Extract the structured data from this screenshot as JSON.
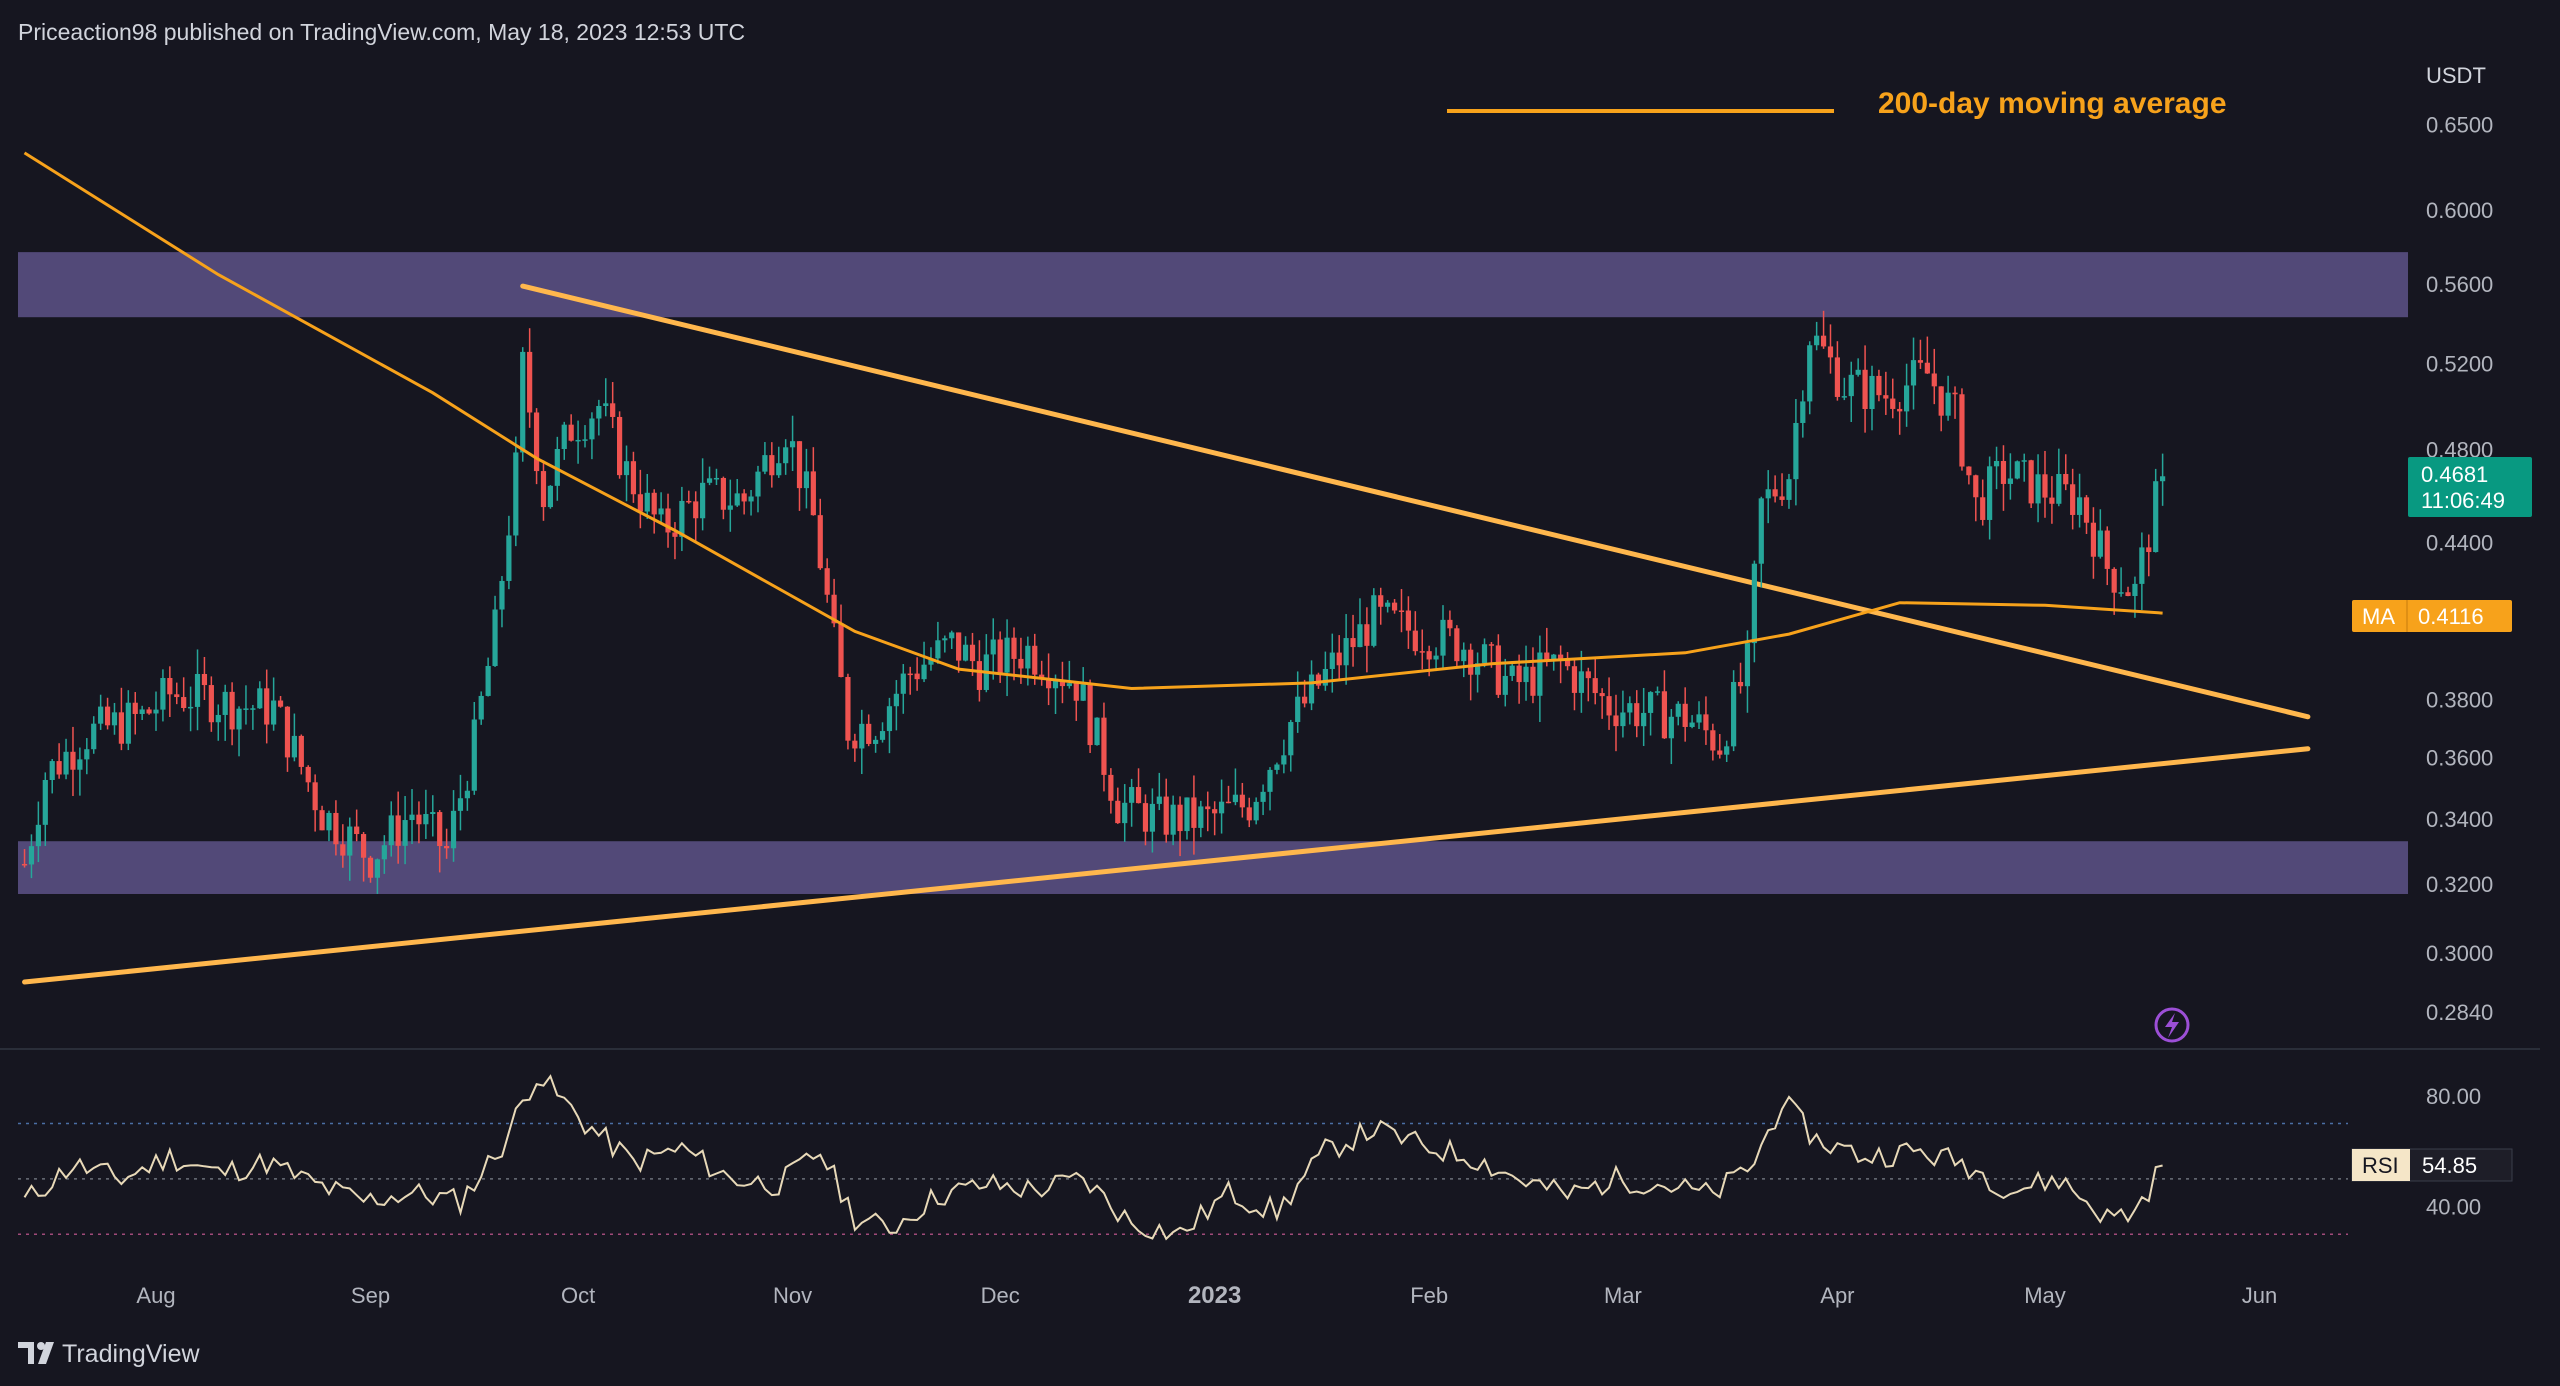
{
  "header": {
    "publisher": "Priceaction98 published on TradingView.com, May 18, 2023 12:53 UTC"
  },
  "footer": {
    "brand": "TradingView"
  },
  "colors": {
    "background": "#161620",
    "up": "#26a69a",
    "down": "#ef5350",
    "ma": "#f7a21b",
    "trendline": "#ffb74d",
    "zone": "#6a5d9a",
    "rsi": "#e8d9b8",
    "text": "#d1d4dc",
    "label_bg_green": "#089981"
  },
  "chart_data": [
    {
      "type": "candlestick",
      "pair_quote": "USDT",
      "legend": {
        "ma_label": "200-day moving average",
        "placement": "top-right"
      },
      "x_labels": [
        "Aug",
        "Sep",
        "Oct",
        "Nov",
        "Dec",
        "2023",
        "Feb",
        "Mar",
        "Apr",
        "May",
        "Jun"
      ],
      "x_dates": [
        "2022-08-01",
        "2022-09-01",
        "2022-10-01",
        "2022-11-01",
        "2022-12-01",
        "2023-01-01",
        "2023-02-01",
        "2023-03-01",
        "2023-04-01",
        "2023-05-01",
        "2023-06-01"
      ],
      "x_range": [
        "2022-07-13",
        "2023-06-30"
      ],
      "y_axis": {
        "scale": "log",
        "ticks": [
          "0.6500",
          "0.6000",
          "0.5600",
          "0.5200",
          "0.4800",
          "0.4400",
          "0.3800",
          "0.3600",
          "0.3400",
          "0.3200",
          "0.3000",
          "0.2840"
        ],
        "range": [
          0.28,
          0.665
        ]
      },
      "current_price": {
        "price": "0.4681",
        "countdown": "11:06:49"
      },
      "ma_label": {
        "name": "MA",
        "value": "0.4116"
      },
      "zones": [
        {
          "name": "resistance",
          "top": 0.577,
          "bottom": 0.543
        },
        {
          "name": "support",
          "top": 0.333,
          "bottom": 0.317
        }
      ],
      "trendlines": [
        {
          "name": "descending",
          "from": {
            "date": "2022-09-23",
            "price": 0.559
          },
          "to": {
            "date": "2023-06-08",
            "price": 0.374
          }
        },
        {
          "name": "ascending",
          "from": {
            "date": "2022-07-13",
            "price": 0.292
          },
          "to": {
            "date": "2023-06-08",
            "price": 0.363
          }
        }
      ],
      "ma_200": {
        "dates": [
          "2022-07-13",
          "2022-08-10",
          "2022-09-10",
          "2022-09-25",
          "2022-10-15",
          "2022-11-10",
          "2022-11-25",
          "2022-12-20",
          "2023-01-15",
          "2023-02-10",
          "2023-03-10",
          "2023-03-25",
          "2023-04-10",
          "2023-05-01",
          "2023-05-18"
        ],
        "values": [
          0.633,
          0.565,
          0.506,
          0.476,
          0.445,
          0.405,
          0.391,
          0.384,
          0.386,
          0.393,
          0.397,
          0.404,
          0.416,
          0.415,
          0.412
        ]
      },
      "price_path": {
        "dates": [
          "2022-07-13",
          "2022-07-16",
          "2022-07-22",
          "2022-07-30",
          "2022-08-03",
          "2022-08-08",
          "2022-08-12",
          "2022-08-18",
          "2022-08-25",
          "2022-09-01",
          "2022-09-07",
          "2022-09-12",
          "2022-09-16",
          "2022-09-19",
          "2022-09-22",
          "2022-09-23",
          "2022-09-26",
          "2022-09-30",
          "2022-10-04",
          "2022-10-08",
          "2022-10-13",
          "2022-10-19",
          "2022-10-25",
          "2022-10-31",
          "2022-11-04",
          "2022-11-07",
          "2022-11-09",
          "2022-11-13",
          "2022-11-18",
          "2022-11-24",
          "2022-11-28",
          "2022-12-05",
          "2022-12-12",
          "2022-12-18",
          "2022-12-24",
          "2022-12-31",
          "2023-01-06",
          "2023-01-12",
          "2023-01-18",
          "2023-01-24",
          "2023-01-30",
          "2023-02-06",
          "2023-02-13",
          "2023-02-20",
          "2023-02-27",
          "2023-03-06",
          "2023-03-10",
          "2023-03-15",
          "2023-03-19",
          "2023-03-21",
          "2023-03-25",
          "2023-03-28",
          "2023-04-02",
          "2023-04-08",
          "2023-04-14",
          "2023-04-18",
          "2023-04-21",
          "2023-04-25",
          "2023-05-01",
          "2023-05-06",
          "2023-05-10",
          "2023-05-14",
          "2023-05-18"
        ],
        "values": [
          0.326,
          0.354,
          0.368,
          0.374,
          0.382,
          0.381,
          0.378,
          0.377,
          0.342,
          0.328,
          0.342,
          0.33,
          0.365,
          0.405,
          0.47,
          0.518,
          0.46,
          0.49,
          0.5,
          0.47,
          0.445,
          0.46,
          0.458,
          0.49,
          0.45,
          0.4,
          0.37,
          0.372,
          0.39,
          0.4,
          0.392,
          0.398,
          0.386,
          0.345,
          0.34,
          0.34,
          0.345,
          0.372,
          0.392,
          0.41,
          0.405,
          0.4,
          0.385,
          0.393,
          0.378,
          0.375,
          0.374,
          0.365,
          0.392,
          0.455,
          0.47,
          0.535,
          0.51,
          0.505,
          0.515,
          0.495,
          0.455,
          0.47,
          0.462,
          0.458,
          0.43,
          0.42,
          0.4681
        ]
      }
    },
    {
      "type": "line",
      "name": "RSI",
      "value_label": "54.85",
      "y_axis": {
        "ticks": [
          "80.00",
          "40.00"
        ],
        "range": [
          20,
          98
        ]
      },
      "guide_levels": [
        70,
        50,
        30
      ],
      "dates": [
        "2022-07-13",
        "2022-07-20",
        "2022-07-27",
        "2022-08-03",
        "2022-08-10",
        "2022-08-17",
        "2022-08-24",
        "2022-08-31",
        "2022-09-07",
        "2022-09-14",
        "2022-09-20",
        "2022-09-25",
        "2022-10-02",
        "2022-10-09",
        "2022-10-16",
        "2022-10-23",
        "2022-10-30",
        "2022-11-05",
        "2022-11-10",
        "2022-11-15",
        "2022-11-22",
        "2022-11-29",
        "2022-12-06",
        "2022-12-13",
        "2022-12-20",
        "2022-12-27",
        "2023-01-03",
        "2023-01-10",
        "2023-01-17",
        "2023-01-24",
        "2023-01-31",
        "2023-02-07",
        "2023-02-14",
        "2023-02-21",
        "2023-02-28",
        "2023-03-07",
        "2023-03-14",
        "2023-03-20",
        "2023-03-24",
        "2023-03-29",
        "2023-04-05",
        "2023-04-12",
        "2023-04-19",
        "2023-04-26",
        "2023-05-03",
        "2023-05-10",
        "2023-05-14",
        "2023-05-18"
      ],
      "values": [
        42,
        55,
        50,
        58,
        52,
        56,
        48,
        42,
        45,
        42,
        62,
        88,
        70,
        56,
        61,
        50,
        48,
        60,
        36,
        32,
        44,
        48,
        46,
        50,
        34,
        30,
        45,
        38,
        60,
        68,
        62,
        58,
        50,
        44,
        50,
        48,
        44,
        56,
        78,
        64,
        58,
        60,
        56,
        46,
        50,
        36,
        38,
        54.85
      ]
    }
  ]
}
